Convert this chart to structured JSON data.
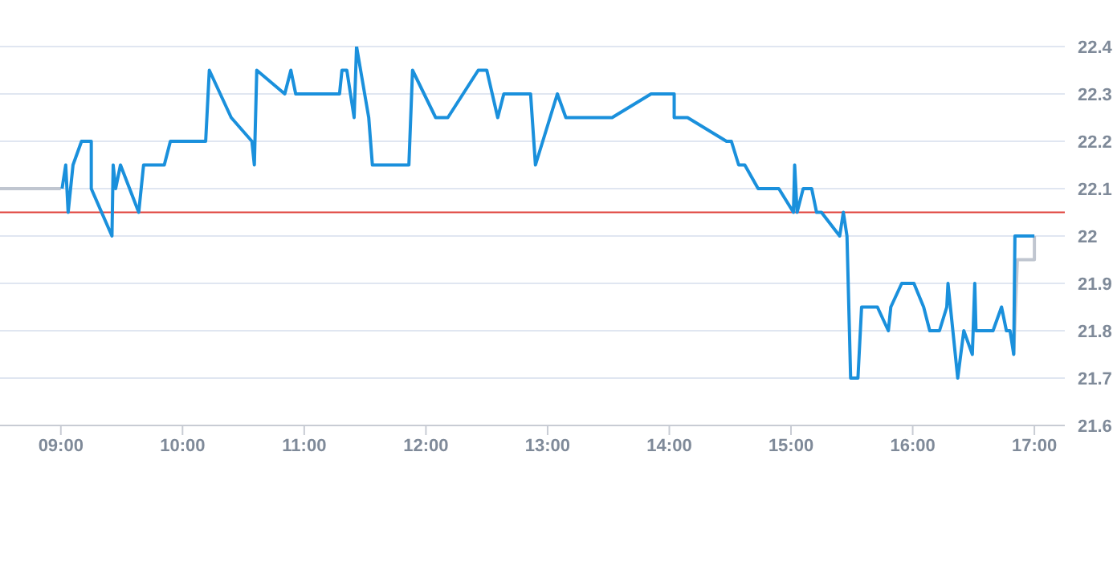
{
  "chart_data": {
    "type": "line",
    "xlim": [
      8.5,
      17.25
    ],
    "ylim": [
      21.6,
      22.4
    ],
    "xticks": [
      {
        "value": 9,
        "label": "09:00"
      },
      {
        "value": 10,
        "label": "10:00"
      },
      {
        "value": 11,
        "label": "11:00"
      },
      {
        "value": 12,
        "label": "12:00"
      },
      {
        "value": 13,
        "label": "13:00"
      },
      {
        "value": 14,
        "label": "14:00"
      },
      {
        "value": 15,
        "label": "15:00"
      },
      {
        "value": 16,
        "label": "16:00"
      },
      {
        "value": 17,
        "label": "17:00"
      }
    ],
    "yticks": [
      21.6,
      21.7,
      21.8,
      21.9,
      22,
      22.1,
      22.2,
      22.3,
      22.4
    ],
    "grid": "y",
    "marker": "none",
    "line_style": "solid",
    "ref_lines": [
      {
        "axis": "y",
        "value": 22.05,
        "color": "#e0403a"
      }
    ],
    "series": [
      {
        "color": "#c0c6d0",
        "x": [
          8.5,
          9.0
        ],
        "values": [
          22.1,
          22.1
        ]
      },
      {
        "color": "#c0c6d0",
        "x": [
          16.83,
          16.86,
          17.0,
          17.0
        ],
        "values": [
          21.75,
          21.95,
          21.95,
          22.0
        ]
      },
      {
        "color": "#1a90dc",
        "x": [
          9.01,
          9.04,
          9.06,
          9.1,
          9.17,
          9.25,
          9.25,
          9.42,
          9.43,
          9.45,
          9.49,
          9.64,
          9.68,
          9.85,
          9.9,
          10.19,
          10.22,
          10.4,
          10.57,
          10.59,
          10.61,
          10.84,
          10.89,
          10.93,
          11.29,
          11.31,
          11.35,
          11.41,
          11.43,
          11.53,
          11.56,
          11.86,
          11.89,
          12.08,
          12.18,
          12.43,
          12.5,
          12.59,
          12.64,
          12.86,
          12.9,
          13.08,
          13.15,
          13.53,
          13.85,
          14.04,
          14.04,
          14.15,
          14.47,
          14.51,
          14.57,
          14.62,
          14.73,
          14.9,
          15.02,
          15.03,
          15.05,
          15.1,
          15.17,
          15.21,
          15.25,
          15.4,
          15.43,
          15.46,
          15.49,
          15.55,
          15.58,
          15.71,
          15.8,
          15.82,
          15.91,
          16.01,
          16.09,
          16.14,
          16.22,
          16.28,
          16.29,
          16.31,
          16.37,
          16.42,
          16.49,
          16.51,
          16.52,
          16.66,
          16.73,
          16.77,
          16.8,
          16.83,
          16.84,
          17.0
        ],
        "values": [
          22.1,
          22.15,
          22.05,
          22.15,
          22.2,
          22.2,
          22.1,
          22.0,
          22.15,
          22.1,
          22.15,
          22.05,
          22.15,
          22.15,
          22.2,
          22.2,
          22.35,
          22.25,
          22.2,
          22.15,
          22.35,
          22.3,
          22.35,
          22.3,
          22.3,
          22.35,
          22.35,
          22.25,
          22.4,
          22.25,
          22.15,
          22.15,
          22.35,
          22.25,
          22.25,
          22.35,
          22.35,
          22.25,
          22.3,
          22.3,
          22.15,
          22.3,
          22.25,
          22.25,
          22.3,
          22.3,
          22.25,
          22.25,
          22.2,
          22.2,
          22.15,
          22.15,
          22.1,
          22.1,
          22.05,
          22.15,
          22.05,
          22.1,
          22.1,
          22.05,
          22.05,
          22.0,
          22.05,
          22.0,
          21.7,
          21.7,
          21.85,
          21.85,
          21.8,
          21.85,
          21.9,
          21.9,
          21.85,
          21.8,
          21.8,
          21.85,
          21.9,
          21.85,
          21.7,
          21.8,
          21.75,
          21.9,
          21.8,
          21.8,
          21.85,
          21.8,
          21.8,
          21.75,
          22.0,
          22.0
        ]
      }
    ]
  }
}
